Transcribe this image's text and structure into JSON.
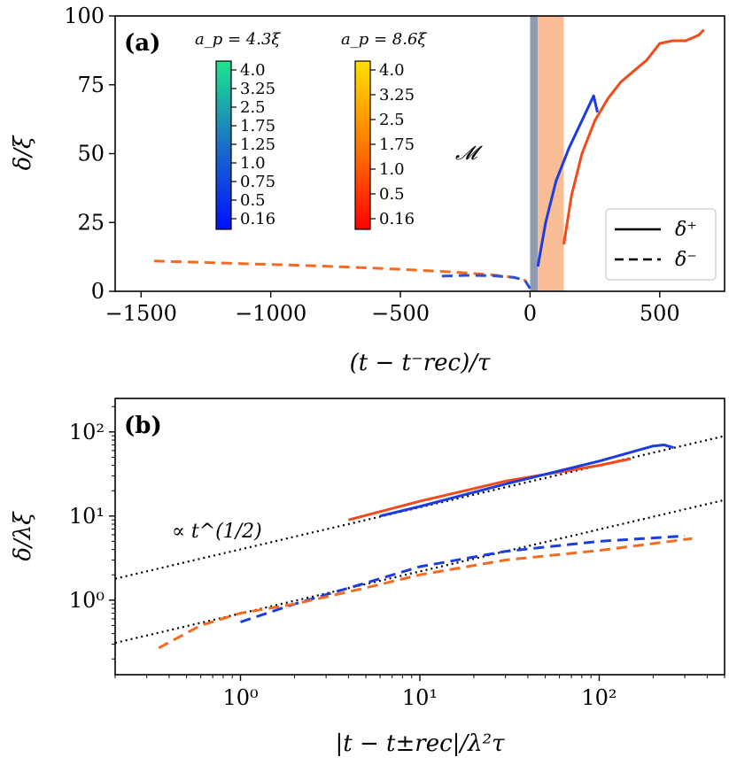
{
  "chart_data": [
    {
      "type": "line",
      "panel_label": "(a)",
      "xlabel": "(t − t⁻rec)/τ",
      "ylabel": "δ/ξ",
      "xlim": [
        -1600,
        750
      ],
      "ylim": [
        0,
        100
      ],
      "xticks": [
        -1500,
        -1000,
        -500,
        0,
        500
      ],
      "xtick_labels": [
        "−1500",
        "−1000",
        "−500",
        "0",
        "500"
      ],
      "yticks": [
        0,
        25,
        50,
        75,
        100
      ],
      "ytick_labels": [
        "0",
        "25",
        "50",
        "75",
        "100"
      ],
      "shaded_regions": [
        {
          "name": "gray-band",
          "x": [
            0,
            30
          ],
          "color": "#8e9bb0"
        },
        {
          "name": "orange-band",
          "x": [
            30,
            130
          ],
          "color": "#f9bd95"
        }
      ],
      "colorbars": [
        {
          "title": "a_p = 4.3ξ",
          "colormap": "winter-like",
          "ticks": [
            "4.0",
            "3.25",
            "2.5",
            "1.75",
            "1.25",
            "1.0",
            "0.75",
            "0.5",
            "0.16"
          ]
        },
        {
          "title": "a_p = 8.6ξ",
          "colormap": "autumn",
          "ticks": [
            "4.0",
            "3.25",
            "2.5",
            "1.75",
            "1.0",
            "0.5",
            "0.16"
          ]
        }
      ],
      "colorbar_label": "𝓜",
      "legend": {
        "position": "lower-right",
        "entries": [
          {
            "label": "δ⁺",
            "style": "solid"
          },
          {
            "label": "δ⁻",
            "style": "dashed"
          }
        ]
      },
      "series": [
        {
          "name": "δ⁻ (a_p = 8.6ξ)",
          "style": "dashed",
          "color": "#f56a1f",
          "x": [
            -1450,
            -1300,
            -1100,
            -900,
            -700,
            -500,
            -300,
            -150,
            -60,
            -20,
            0
          ],
          "y": [
            11,
            10.6,
            10,
            9.5,
            8.8,
            8,
            7,
            6,
            5,
            4,
            1
          ]
        },
        {
          "name": "δ⁻ (a_p = 4.3ξ)",
          "style": "dashed",
          "color": "#2a4fdc",
          "x": [
            -340,
            -250,
            -150,
            -60,
            -20,
            0
          ],
          "y": [
            5.5,
            5.8,
            5.7,
            5,
            4,
            1
          ]
        },
        {
          "name": "δ⁺ (a_p = 4.3ξ)",
          "style": "solid",
          "color": "#1a3ce0",
          "x": [
            30,
            60,
            100,
            150,
            200,
            245,
            260
          ],
          "y": [
            9,
            25,
            40,
            52,
            62,
            71,
            65
          ]
        },
        {
          "name": "δ⁺ (a_p = 8.6ξ)",
          "style": "solid",
          "color": "#f24a1a",
          "x": [
            130,
            160,
            200,
            250,
            300,
            350,
            400,
            450,
            500,
            550,
            600,
            650,
            670
          ],
          "y": [
            17,
            35,
            50,
            62,
            70,
            76,
            80,
            84,
            90,
            91,
            91,
            93,
            95
          ]
        }
      ]
    },
    {
      "type": "line",
      "panel_label": "(b)",
      "xlabel": "|t − t±rec|/λ²τ",
      "ylabel": "δ/λξ",
      "xscale": "log",
      "yscale": "log",
      "xlim": [
        0.2,
        500
      ],
      "ylim": [
        0.13,
        250
      ],
      "xticks": [
        1,
        10,
        100
      ],
      "xtick_labels": [
        "10⁰",
        "10¹",
        "10²"
      ],
      "yticks": [
        1,
        10,
        100
      ],
      "ytick_labels": [
        "10⁰",
        "10¹",
        "10²"
      ],
      "annotation": "∝ t^(1/2)",
      "series": [
        {
          "name": "guide-upper",
          "style": "dotted",
          "color": "#000000",
          "x": [
            0.2,
            500
          ],
          "y": [
            1.8,
            89.4
          ]
        },
        {
          "name": "guide-lower",
          "style": "dotted",
          "color": "#000000",
          "x": [
            0.2,
            500
          ],
          "y": [
            0.31,
            15.5
          ]
        },
        {
          "name": "δ⁺ (a_p = 8.6ξ)",
          "style": "solid",
          "color": "#f24a1a",
          "x": [
            4,
            10,
            30,
            100,
            150
          ],
          "y": [
            9,
            15,
            26,
            40,
            48
          ]
        },
        {
          "name": "δ⁺ (a_p = 4.3ξ)",
          "style": "solid",
          "color": "#1a3ce0",
          "x": [
            6,
            10,
            30,
            100,
            200,
            230,
            260
          ],
          "y": [
            10,
            13,
            24,
            45,
            68,
            70,
            65
          ]
        },
        {
          "name": "δ⁻ (a_p = 4.3ξ)",
          "style": "dashed",
          "color": "#1a3ce0",
          "x": [
            1,
            2,
            5,
            10,
            30,
            100,
            300
          ],
          "y": [
            0.55,
            0.9,
            1.6,
            2.5,
            3.8,
            5,
            5.8
          ]
        },
        {
          "name": "δ⁻ (a_p = 8.6ξ)",
          "style": "dashed",
          "color": "#f56a1f",
          "x": [
            0.35,
            0.6,
            1,
            2,
            5,
            10,
            30,
            100,
            330
          ],
          "y": [
            0.27,
            0.5,
            0.7,
            0.9,
            1.4,
            2,
            3,
            3.9,
            5.4
          ]
        }
      ]
    }
  ]
}
